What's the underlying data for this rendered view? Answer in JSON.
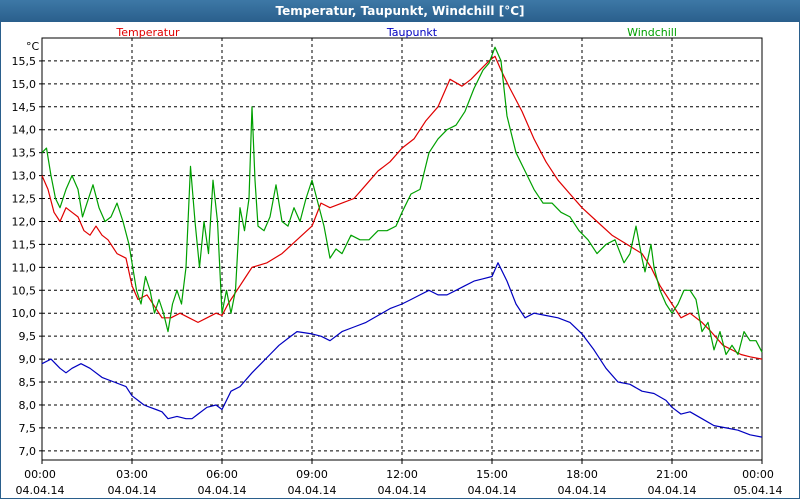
{
  "window": {
    "title": "Temperatur, Taupunkt, Windchill [°C]"
  },
  "chart_data": {
    "type": "line",
    "title": "Temperatur, Taupunkt, Windchill [°C]",
    "ylabel": "°C",
    "ylim": [
      6.8,
      16.0
    ],
    "xlim": [
      0,
      24
    ],
    "y_ticks": [
      "7,0",
      "7,5",
      "8,0",
      "8,5",
      "9,0",
      "9,5",
      "10,0",
      "10,5",
      "11,0",
      "11,5",
      "12,0",
      "12,5",
      "13,0",
      "13,5",
      "14,0",
      "14,5",
      "15,0",
      "15,5"
    ],
    "y_tick_values": [
      7.0,
      7.5,
      8.0,
      8.5,
      9.0,
      9.5,
      10.0,
      10.5,
      11.0,
      11.5,
      12.0,
      12.5,
      13.0,
      13.5,
      14.0,
      14.5,
      15.0,
      15.5
    ],
    "x_ticks": [
      {
        "time": "00:00",
        "date": "04.04.14",
        "hour": 0
      },
      {
        "time": "03:00",
        "date": "04.04.14",
        "hour": 3
      },
      {
        "time": "06:00",
        "date": "04.04.14",
        "hour": 6
      },
      {
        "time": "09:00",
        "date": "04.04.14",
        "hour": 9
      },
      {
        "time": "12:00",
        "date": "04.04.14",
        "hour": 12
      },
      {
        "time": "15:00",
        "date": "04.04.14",
        "hour": 15
      },
      {
        "time": "18:00",
        "date": "04.04.14",
        "hour": 18
      },
      {
        "time": "21:00",
        "date": "04.04.14",
        "hour": 21
      },
      {
        "time": "00:00",
        "date": "05.04.14",
        "hour": 24
      }
    ],
    "legend": [
      {
        "name": "Temperatur",
        "color": "#e00000",
        "position": "left"
      },
      {
        "name": "Taupunkt",
        "color": "#0000c0",
        "position": "center"
      },
      {
        "name": "Windchill",
        "color": "#00a000",
        "position": "right"
      }
    ],
    "series": [
      {
        "name": "Temperatur",
        "color": "#e00000",
        "points": [
          [
            0,
            13.0
          ],
          [
            0.2,
            12.7
          ],
          [
            0.4,
            12.2
          ],
          [
            0.6,
            12.0
          ],
          [
            0.8,
            12.3
          ],
          [
            1.0,
            12.2
          ],
          [
            1.2,
            12.1
          ],
          [
            1.4,
            11.8
          ],
          [
            1.6,
            11.7
          ],
          [
            1.8,
            11.9
          ],
          [
            2.0,
            11.7
          ],
          [
            2.2,
            11.6
          ],
          [
            2.5,
            11.3
          ],
          [
            2.8,
            11.2
          ],
          [
            3.0,
            10.6
          ],
          [
            3.2,
            10.3
          ],
          [
            3.5,
            10.4
          ],
          [
            3.8,
            10.1
          ],
          [
            4.0,
            9.9
          ],
          [
            4.3,
            9.9
          ],
          [
            4.6,
            10.0
          ],
          [
            4.9,
            9.9
          ],
          [
            5.2,
            9.8
          ],
          [
            5.5,
            9.9
          ],
          [
            5.8,
            10.0
          ],
          [
            6.0,
            9.95
          ],
          [
            6.2,
            10.2
          ],
          [
            6.5,
            10.5
          ],
          [
            6.8,
            10.8
          ],
          [
            7.0,
            11.0
          ],
          [
            7.5,
            11.1
          ],
          [
            8.0,
            11.3
          ],
          [
            8.5,
            11.6
          ],
          [
            9.0,
            11.9
          ],
          [
            9.3,
            12.4
          ],
          [
            9.6,
            12.3
          ],
          [
            10.0,
            12.4
          ],
          [
            10.4,
            12.5
          ],
          [
            10.8,
            12.8
          ],
          [
            11.2,
            13.1
          ],
          [
            11.6,
            13.3
          ],
          [
            12.0,
            13.6
          ],
          [
            12.4,
            13.8
          ],
          [
            12.8,
            14.2
          ],
          [
            13.2,
            14.5
          ],
          [
            13.6,
            15.1
          ],
          [
            14.0,
            14.95
          ],
          [
            14.3,
            15.1
          ],
          [
            14.6,
            15.3
          ],
          [
            14.9,
            15.5
          ],
          [
            15.1,
            15.6
          ],
          [
            15.3,
            15.3
          ],
          [
            15.6,
            14.9
          ],
          [
            16.0,
            14.4
          ],
          [
            16.4,
            13.8
          ],
          [
            16.8,
            13.3
          ],
          [
            17.2,
            12.9
          ],
          [
            17.6,
            12.6
          ],
          [
            18.0,
            12.3
          ],
          [
            18.5,
            12.0
          ],
          [
            19.0,
            11.7
          ],
          [
            19.5,
            11.5
          ],
          [
            20.0,
            11.3
          ],
          [
            20.3,
            11.0
          ],
          [
            20.6,
            10.6
          ],
          [
            21.0,
            10.2
          ],
          [
            21.3,
            9.9
          ],
          [
            21.6,
            10.0
          ],
          [
            22.0,
            9.8
          ],
          [
            22.3,
            9.6
          ],
          [
            22.7,
            9.3
          ],
          [
            23.0,
            9.2
          ],
          [
            23.3,
            9.1
          ],
          [
            23.6,
            9.05
          ],
          [
            24.0,
            9.0
          ]
        ]
      },
      {
        "name": "Taupunkt",
        "color": "#0000c0",
        "points": [
          [
            0,
            8.9
          ],
          [
            0.3,
            9.0
          ],
          [
            0.6,
            8.8
          ],
          [
            0.8,
            8.7
          ],
          [
            1.0,
            8.8
          ],
          [
            1.3,
            8.9
          ],
          [
            1.6,
            8.8
          ],
          [
            2.0,
            8.6
          ],
          [
            2.4,
            8.5
          ],
          [
            2.8,
            8.4
          ],
          [
            3.0,
            8.2
          ],
          [
            3.2,
            8.1
          ],
          [
            3.4,
            8.0
          ],
          [
            3.6,
            7.95
          ],
          [
            3.8,
            7.9
          ],
          [
            4.0,
            7.85
          ],
          [
            4.2,
            7.7
          ],
          [
            4.5,
            7.75
          ],
          [
            4.8,
            7.7
          ],
          [
            5.0,
            7.7
          ],
          [
            5.2,
            7.8
          ],
          [
            5.5,
            7.95
          ],
          [
            5.8,
            8.0
          ],
          [
            6.0,
            7.9
          ],
          [
            6.3,
            8.3
          ],
          [
            6.6,
            8.4
          ],
          [
            7.0,
            8.7
          ],
          [
            7.3,
            8.9
          ],
          [
            7.6,
            9.1
          ],
          [
            7.9,
            9.3
          ],
          [
            8.2,
            9.45
          ],
          [
            8.5,
            9.6
          ],
          [
            9.0,
            9.55
          ],
          [
            9.3,
            9.5
          ],
          [
            9.6,
            9.4
          ],
          [
            10.0,
            9.6
          ],
          [
            10.4,
            9.7
          ],
          [
            10.8,
            9.8
          ],
          [
            11.2,
            9.95
          ],
          [
            11.6,
            10.1
          ],
          [
            12.0,
            10.2
          ],
          [
            12.3,
            10.3
          ],
          [
            12.6,
            10.4
          ],
          [
            12.9,
            10.5
          ],
          [
            13.2,
            10.4
          ],
          [
            13.5,
            10.4
          ],
          [
            13.8,
            10.5
          ],
          [
            14.1,
            10.6
          ],
          [
            14.4,
            10.7
          ],
          [
            14.7,
            10.75
          ],
          [
            15.0,
            10.8
          ],
          [
            15.2,
            11.1
          ],
          [
            15.5,
            10.7
          ],
          [
            15.8,
            10.2
          ],
          [
            16.1,
            9.9
          ],
          [
            16.4,
            10.0
          ],
          [
            16.8,
            9.95
          ],
          [
            17.2,
            9.9
          ],
          [
            17.6,
            9.8
          ],
          [
            18.0,
            9.55
          ],
          [
            18.4,
            9.2
          ],
          [
            18.8,
            8.8
          ],
          [
            19.2,
            8.5
          ],
          [
            19.6,
            8.45
          ],
          [
            20.0,
            8.3
          ],
          [
            20.4,
            8.25
          ],
          [
            20.8,
            8.1
          ],
          [
            21.0,
            7.95
          ],
          [
            21.3,
            7.8
          ],
          [
            21.6,
            7.85
          ],
          [
            22.0,
            7.7
          ],
          [
            22.4,
            7.55
          ],
          [
            22.8,
            7.5
          ],
          [
            23.2,
            7.45
          ],
          [
            23.6,
            7.35
          ],
          [
            24.0,
            7.3
          ]
        ]
      },
      {
        "name": "Windchill",
        "color": "#00a000",
        "points": [
          [
            0,
            13.5
          ],
          [
            0.15,
            13.6
          ],
          [
            0.3,
            13.0
          ],
          [
            0.45,
            12.5
          ],
          [
            0.6,
            12.3
          ],
          [
            0.8,
            12.7
          ],
          [
            1.0,
            13.0
          ],
          [
            1.2,
            12.7
          ],
          [
            1.35,
            12.1
          ],
          [
            1.5,
            12.4
          ],
          [
            1.7,
            12.8
          ],
          [
            1.9,
            12.3
          ],
          [
            2.1,
            12.0
          ],
          [
            2.3,
            12.1
          ],
          [
            2.5,
            12.4
          ],
          [
            2.7,
            12.0
          ],
          [
            2.9,
            11.5
          ],
          [
            3.0,
            11.1
          ],
          [
            3.15,
            10.5
          ],
          [
            3.3,
            10.2
          ],
          [
            3.45,
            10.8
          ],
          [
            3.6,
            10.5
          ],
          [
            3.75,
            10.0
          ],
          [
            3.9,
            10.3
          ],
          [
            4.05,
            10.0
          ],
          [
            4.2,
            9.6
          ],
          [
            4.35,
            10.2
          ],
          [
            4.5,
            10.5
          ],
          [
            4.65,
            10.2
          ],
          [
            4.8,
            11.0
          ],
          [
            4.95,
            13.2
          ],
          [
            5.1,
            12.0
          ],
          [
            5.25,
            11.0
          ],
          [
            5.4,
            12.0
          ],
          [
            5.55,
            11.3
          ],
          [
            5.7,
            12.9
          ],
          [
            5.85,
            12.0
          ],
          [
            6.0,
            10.0
          ],
          [
            6.15,
            10.5
          ],
          [
            6.3,
            10.0
          ],
          [
            6.45,
            10.5
          ],
          [
            6.6,
            12.3
          ],
          [
            6.75,
            11.8
          ],
          [
            6.9,
            12.5
          ],
          [
            7.0,
            14.5
          ],
          [
            7.1,
            12.9
          ],
          [
            7.2,
            11.9
          ],
          [
            7.4,
            11.8
          ],
          [
            7.6,
            12.1
          ],
          [
            7.8,
            12.8
          ],
          [
            8.0,
            12.0
          ],
          [
            8.2,
            11.9
          ],
          [
            8.4,
            12.3
          ],
          [
            8.6,
            12.0
          ],
          [
            8.8,
            12.5
          ],
          [
            9.0,
            12.9
          ],
          [
            9.2,
            12.4
          ],
          [
            9.4,
            11.9
          ],
          [
            9.6,
            11.2
          ],
          [
            9.8,
            11.4
          ],
          [
            10.0,
            11.3
          ],
          [
            10.3,
            11.7
          ],
          [
            10.6,
            11.6
          ],
          [
            10.9,
            11.6
          ],
          [
            11.2,
            11.8
          ],
          [
            11.5,
            11.8
          ],
          [
            11.8,
            11.9
          ],
          [
            12.0,
            12.2
          ],
          [
            12.3,
            12.6
          ],
          [
            12.6,
            12.7
          ],
          [
            12.9,
            13.5
          ],
          [
            13.2,
            13.8
          ],
          [
            13.5,
            14.0
          ],
          [
            13.8,
            14.1
          ],
          [
            14.1,
            14.4
          ],
          [
            14.4,
            14.9
          ],
          [
            14.7,
            15.3
          ],
          [
            14.9,
            15.45
          ],
          [
            15.1,
            15.8
          ],
          [
            15.3,
            15.5
          ],
          [
            15.5,
            14.3
          ],
          [
            15.8,
            13.5
          ],
          [
            16.1,
            13.1
          ],
          [
            16.4,
            12.7
          ],
          [
            16.7,
            12.4
          ],
          [
            17.0,
            12.4
          ],
          [
            17.3,
            12.2
          ],
          [
            17.6,
            12.1
          ],
          [
            17.9,
            11.8
          ],
          [
            18.2,
            11.6
          ],
          [
            18.5,
            11.3
          ],
          [
            18.8,
            11.5
          ],
          [
            19.1,
            11.6
          ],
          [
            19.4,
            11.1
          ],
          [
            19.6,
            11.3
          ],
          [
            19.8,
            11.9
          ],
          [
            20.0,
            11.2
          ],
          [
            20.1,
            10.9
          ],
          [
            20.3,
            11.5
          ],
          [
            20.4,
            11.0
          ],
          [
            20.6,
            10.5
          ],
          [
            20.8,
            10.2
          ],
          [
            21.0,
            10.0
          ],
          [
            21.2,
            10.2
          ],
          [
            21.4,
            10.5
          ],
          [
            21.6,
            10.5
          ],
          [
            21.8,
            10.3
          ],
          [
            22.0,
            9.6
          ],
          [
            22.2,
            9.8
          ],
          [
            22.4,
            9.2
          ],
          [
            22.6,
            9.6
          ],
          [
            22.8,
            9.1
          ],
          [
            23.0,
            9.3
          ],
          [
            23.2,
            9.1
          ],
          [
            23.4,
            9.6
          ],
          [
            23.6,
            9.4
          ],
          [
            23.8,
            9.4
          ],
          [
            24.0,
            9.15
          ]
        ]
      }
    ]
  }
}
